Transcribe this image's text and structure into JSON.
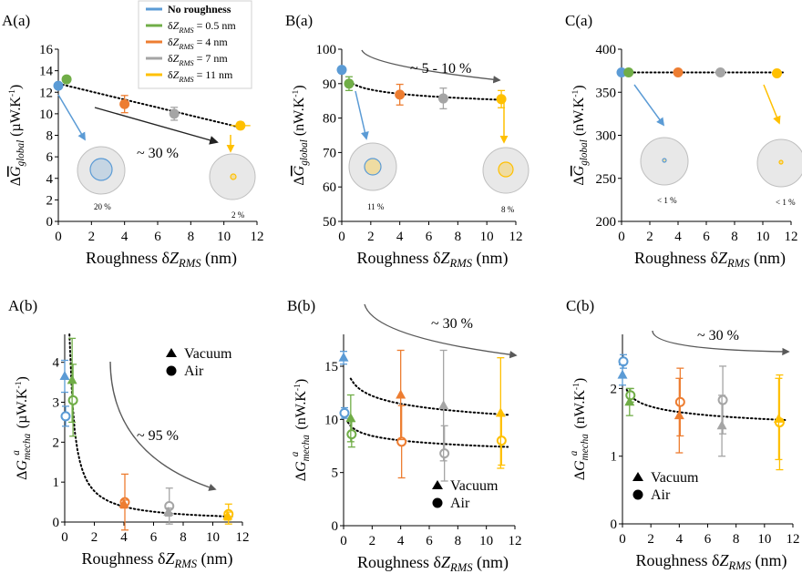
{
  "colors": {
    "No roughness": "#5b9bd5",
    "0.5 nm": "#70ad47",
    "4 nm": "#ed7d31",
    "7 nm": "#a5a5a5",
    "11 nm": "#ffc000",
    "arrow": "#595959"
  },
  "legend": {
    "items": [
      {
        "key": "No roughness",
        "label": "No roughness"
      },
      {
        "key": "0.5 nm",
        "label": "δZRMS = 0.5 nm"
      },
      {
        "key": "4 nm",
        "label": "δZRMS = 4 nm"
      },
      {
        "key": "7 nm",
        "label": "δZRMS = 7 nm"
      },
      {
        "key": "11 nm",
        "label": "δZRMS = 11 nm"
      }
    ]
  },
  "xlabel": "Roughness δZRMS (nm)",
  "chart_data": [
    {
      "id": "Aa",
      "panel_label": "A(a)",
      "type": "scatter",
      "ylabel": "ΔG global (µW.K-1)",
      "xlim": [
        0,
        12
      ],
      "ylim": [
        0,
        16
      ],
      "xticks": [
        0,
        2,
        4,
        6,
        8,
        10,
        12
      ],
      "yticks": [
        0,
        2,
        4,
        6,
        8,
        10,
        12,
        14,
        16
      ],
      "points": [
        {
          "x": 0,
          "y": 12.6,
          "err": 0,
          "key": "No roughness"
        },
        {
          "x": 0.5,
          "y": 13.2,
          "err": 0,
          "key": "0.5 nm"
        },
        {
          "x": 4,
          "y": 10.9,
          "err": 0.8,
          "key": "4 nm"
        },
        {
          "x": 7,
          "y": 10.0,
          "err": 0.6,
          "key": "7 nm"
        },
        {
          "x": 11,
          "y": 8.9,
          "err": 0.3,
          "xerr": 0.6,
          "key": "11 nm"
        }
      ],
      "fit": {
        "kind": "linear",
        "a": 12.8,
        "b": -0.37,
        "x0": 0,
        "x1": 11.3
      },
      "annotation": "~ 30 %",
      "circles": [
        {
          "pct": "20 %",
          "key": "No roughness"
        },
        {
          "pct": "2 %",
          "key": "11 nm"
        }
      ]
    },
    {
      "id": "Ba",
      "panel_label": "B(a)",
      "type": "scatter",
      "ylabel": "ΔG global (nW.K-1)",
      "xlim": [
        0,
        12
      ],
      "ylim": [
        50,
        100
      ],
      "xticks": [
        0,
        2,
        4,
        6,
        8,
        10,
        12
      ],
      "yticks": [
        50,
        60,
        70,
        80,
        90,
        100
      ],
      "points": [
        {
          "x": 0,
          "y": 94,
          "err": 0,
          "key": "No roughness"
        },
        {
          "x": 0.5,
          "y": 90,
          "err": 2,
          "key": "0.5 nm"
        },
        {
          "x": 4,
          "y": 86.8,
          "err": 3,
          "key": "4 nm"
        },
        {
          "x": 7,
          "y": 85.7,
          "err": 3,
          "key": "7 nm"
        },
        {
          "x": 11,
          "y": 85.5,
          "err": 2.5,
          "key": "11 nm"
        }
      ],
      "fit": {
        "kind": "power",
        "a": 89.5,
        "b": -0.02,
        "x0": 0.5,
        "x1": 11.3
      },
      "annotation": "~ 5 - 10 %",
      "circles": [
        {
          "pct": "11 %",
          "key": "No roughness"
        },
        {
          "pct": "8 %",
          "key": "11 nm"
        }
      ]
    },
    {
      "id": "Ca",
      "panel_label": "C(a)",
      "type": "scatter",
      "ylabel": "ΔG global (nW.K-1)",
      "xlim": [
        0,
        12
      ],
      "ylim": [
        200,
        400
      ],
      "xticks": [
        0,
        2,
        4,
        6,
        8,
        10,
        12
      ],
      "yticks": [
        200,
        250,
        300,
        350,
        400
      ],
      "points": [
        {
          "x": 0,
          "y": 373,
          "err": 0,
          "key": "No roughness"
        },
        {
          "x": 0.5,
          "y": 373,
          "err": 0,
          "key": "0.5 nm"
        },
        {
          "x": 4,
          "y": 373,
          "err": 0,
          "key": "4 nm"
        },
        {
          "x": 7,
          "y": 373,
          "err": 0,
          "key": "7 nm"
        },
        {
          "x": 11,
          "y": 372,
          "err": 0,
          "key": "11 nm"
        }
      ],
      "fit": {
        "kind": "linear",
        "a": 373,
        "b": 0,
        "x0": 0,
        "x1": 11.5
      },
      "annotation": "",
      "circles": [
        {
          "pct": "< 1 %",
          "key": "No roughness"
        },
        {
          "pct": "< 1 %",
          "key": "11 nm"
        }
      ]
    },
    {
      "id": "Ab",
      "panel_label": "A(b)",
      "type": "scatter",
      "ylabel": "ΔG a mecha (µW.K-1)",
      "xlim": [
        0,
        12
      ],
      "ylim": [
        0,
        4.7
      ],
      "xticks": [
        0,
        2,
        4,
        6,
        8,
        10,
        12
      ],
      "yticks": [
        0,
        1,
        2,
        3,
        4
      ],
      "vacuum": [
        {
          "x": 0,
          "y": 3.65,
          "err": 0.4,
          "key": "No roughness"
        },
        {
          "x": 0.5,
          "y": 3.55,
          "err": 1.05,
          "key": "0.5 nm"
        },
        {
          "x": 4,
          "y": 0.45,
          "err": 0.1,
          "key": "4 nm"
        },
        {
          "x": 7,
          "y": 0.25,
          "err": 0.1,
          "key": "7 nm"
        },
        {
          "x": 11,
          "y": 0.15,
          "err": 0.1,
          "key": "11 nm"
        }
      ],
      "air": [
        {
          "x": 0,
          "y": 2.65,
          "err": 0.25,
          "key": "No roughness"
        },
        {
          "x": 0.5,
          "y": 3.05,
          "err": 0.9,
          "key": "0.5 nm"
        },
        {
          "x": 4,
          "y": 0.5,
          "err": 0.7,
          "key": "4 nm"
        },
        {
          "x": 7,
          "y": 0.4,
          "err": 0.45,
          "key": "7 nm"
        },
        {
          "x": 11,
          "y": 0.2,
          "err": 0.25,
          "key": "11 nm"
        }
      ],
      "fits": [
        {
          "kind": "power",
          "a": 1.55,
          "b": -1.0,
          "x0": 0.32,
          "x1": 11.3
        }
      ],
      "annotation": "~ 95 %",
      "legend": {
        "vacuum": "Vacuum",
        "air": "Air"
      }
    },
    {
      "id": "Bb",
      "panel_label": "B(b)",
      "type": "scatter",
      "ylabel": "ΔG a mecha (nW.K-1)",
      "xlim": [
        0,
        12
      ],
      "ylim": [
        0,
        18
      ],
      "xticks": [
        0,
        2,
        4,
        6,
        8,
        10,
        12
      ],
      "yticks": [
        0,
        5,
        10,
        15
      ],
      "vacuum": [
        {
          "x": 0,
          "y": 15.8,
          "err": 0.6,
          "key": "No roughness"
        },
        {
          "x": 0.5,
          "y": 10.1,
          "err": 2.2,
          "key": "0.5 nm"
        },
        {
          "x": 4,
          "y": 12.3,
          "err": 4.2,
          "key": "4 nm"
        },
        {
          "x": 7,
          "y": 11.3,
          "err": 5.2,
          "key": "7 nm"
        },
        {
          "x": 11,
          "y": 10.6,
          "err": 5.2,
          "key": "11 nm"
        }
      ],
      "air": [
        {
          "x": 0,
          "y": 10.6,
          "err": 0.5,
          "key": "No roughness"
        },
        {
          "x": 0.5,
          "y": 8.6,
          "err": 1.2,
          "key": "0.5 nm"
        },
        {
          "x": 4,
          "y": 7.9,
          "err": 3.4,
          "key": "4 nm"
        },
        {
          "x": 7,
          "y": 6.8,
          "err": 2.6,
          "key": "7 nm"
        },
        {
          "x": 11,
          "y": 8.0,
          "err": 2.3,
          "key": "11 nm"
        }
      ],
      "fits": [
        {
          "kind": "power",
          "a": 13.0,
          "b": -0.09,
          "x0": 0.5,
          "x1": 11.5
        },
        {
          "kind": "power",
          "a": 8.9,
          "b": -0.075,
          "x0": 0.3,
          "x1": 11.5
        }
      ],
      "annotation": "~ 30 %",
      "legend": {
        "vacuum": "Vacuum",
        "air": "Air"
      }
    },
    {
      "id": "Cb",
      "panel_label": "C(b)",
      "type": "scatter",
      "ylabel": "ΔG a mecha (nW.K-1)",
      "xlim": [
        0,
        12
      ],
      "ylim": [
        0,
        2.8
      ],
      "xticks": [
        0,
        2,
        4,
        6,
        8,
        10,
        12
      ],
      "yticks": [
        0,
        1,
        2
      ],
      "vacuum": [
        {
          "x": 0,
          "y": 2.2,
          "err": 0.15,
          "key": "No roughness"
        },
        {
          "x": 0.5,
          "y": 1.8,
          "err": 0.2,
          "key": "0.5 nm"
        },
        {
          "x": 4,
          "y": 1.6,
          "err": 0.55,
          "key": "4 nm"
        },
        {
          "x": 7,
          "y": 1.45,
          "err": 0.45,
          "key": "7 nm"
        },
        {
          "x": 11,
          "y": 1.55,
          "err": 0.6,
          "key": "11 nm"
        }
      ],
      "air": [
        {
          "x": 0,
          "y": 2.4,
          "err": 0.1,
          "key": "No roughness"
        },
        {
          "x": 0.5,
          "y": 1.9,
          "err": 0.1,
          "key": "0.5 nm"
        },
        {
          "x": 4,
          "y": 1.8,
          "err": 0.5,
          "key": "4 nm"
        },
        {
          "x": 7,
          "y": 1.83,
          "err": 0.5,
          "key": "7 nm"
        },
        {
          "x": 11,
          "y": 1.5,
          "err": 0.7,
          "key": "11 nm"
        }
      ],
      "fits": [
        {
          "kind": "power",
          "a": 1.82,
          "b": -0.07,
          "x0": 0.3,
          "x1": 11.5
        }
      ],
      "annotation": "~ 30 %",
      "legend": {
        "vacuum": "Vacuum",
        "air": "Air"
      }
    }
  ]
}
